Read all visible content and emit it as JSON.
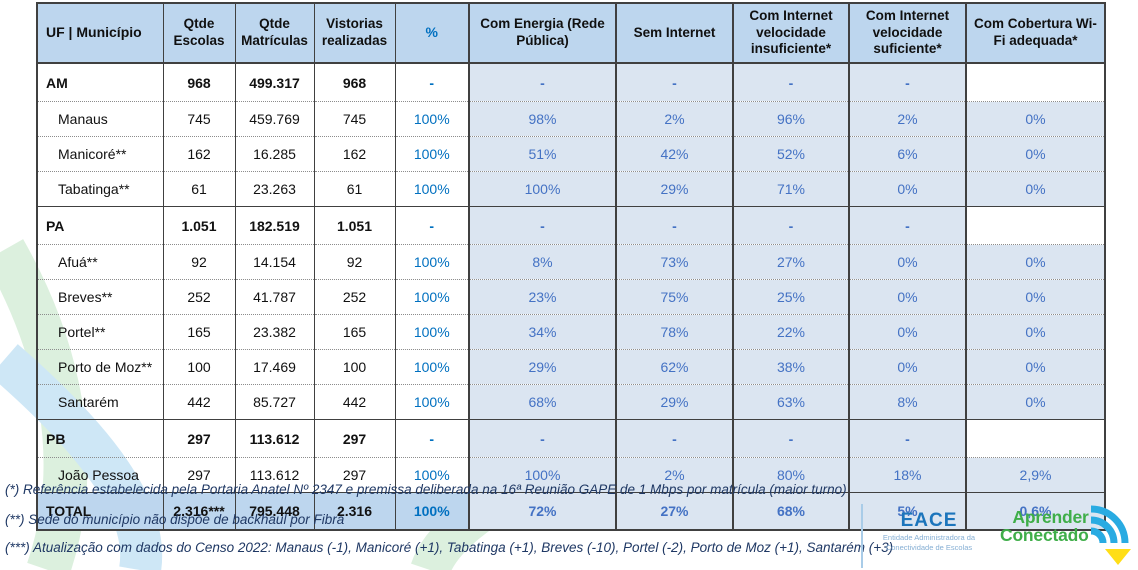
{
  "table": {
    "headers": [
      "UF | Município",
      "Qtde Escolas",
      "Qtde Matrículas",
      "Vistorias realizadas",
      "%",
      "Com Energia (Rede Pública)",
      "Sem Internet",
      "Com Internet velocidade insuficiente*",
      "Com Internet velocidade suficiente*",
      "Com Cobertura Wi-Fi adequada*"
    ],
    "rows": [
      {
        "type": "state",
        "cells": [
          "AM",
          "968",
          "499.317",
          "968",
          "-",
          "-",
          "-",
          "-",
          "-",
          ""
        ]
      },
      {
        "type": "muni",
        "cells": [
          "Manaus",
          "745",
          "459.769",
          "745",
          "100%",
          "98%",
          "2%",
          "96%",
          "2%",
          "0%"
        ]
      },
      {
        "type": "muni",
        "cells": [
          "Manicoré**",
          "162",
          "16.285",
          "162",
          "100%",
          "51%",
          "42%",
          "52%",
          "6%",
          "0%"
        ]
      },
      {
        "type": "muni",
        "cells": [
          "Tabatinga**",
          "61",
          "23.263",
          "61",
          "100%",
          "100%",
          "29%",
          "71%",
          "0%",
          "0%"
        ]
      },
      {
        "type": "state",
        "cells": [
          "PA",
          "1.051",
          "182.519",
          "1.051",
          "-",
          "-",
          "-",
          "-",
          "-",
          ""
        ]
      },
      {
        "type": "muni",
        "cells": [
          "Afuá**",
          "92",
          "14.154",
          "92",
          "100%",
          "8%",
          "73%",
          "27%",
          "0%",
          "0%"
        ]
      },
      {
        "type": "muni",
        "cells": [
          "Breves**",
          "252",
          "41.787",
          "252",
          "100%",
          "23%",
          "75%",
          "25%",
          "0%",
          "0%"
        ]
      },
      {
        "type": "muni",
        "cells": [
          "Portel**",
          "165",
          "23.382",
          "165",
          "100%",
          "34%",
          "78%",
          "22%",
          "0%",
          "0%"
        ]
      },
      {
        "type": "muni",
        "cells": [
          "Porto de Moz**",
          "100",
          "17.469",
          "100",
          "100%",
          "29%",
          "62%",
          "38%",
          "0%",
          "0%"
        ]
      },
      {
        "type": "muni",
        "cells": [
          "Santarém",
          "442",
          "85.727",
          "442",
          "100%",
          "68%",
          "29%",
          "63%",
          "8%",
          "0%"
        ]
      },
      {
        "type": "state",
        "cells": [
          "PB",
          "297",
          "113.612",
          "297",
          "-",
          "-",
          "-",
          "-",
          "-",
          ""
        ]
      },
      {
        "type": "muni",
        "cells": [
          "João Pessoa",
          "297",
          "113.612",
          "297",
          "100%",
          "100%",
          "2%",
          "80%",
          "18%",
          "2,9%"
        ]
      },
      {
        "type": "total",
        "cells": [
          "TOTAL",
          "2.316***",
          "795.448",
          "2.316",
          "100%",
          "72%",
          "27%",
          "68%",
          "5%",
          "0,6%"
        ]
      }
    ]
  },
  "footnotes": [
    "(*) Referência estabelecida pela Portaria Anatel Nº 2347 e premissa deliberada na 16ª Reunião GAPE de 1 Mbps por matrícula (maior turno)",
    "(**) Sede do município não dispõe de backhaul por Fibra",
    "(***) Atualização com dados do Censo 2022: Manaus (-1), Manicoré (+1), Tabatinga (+1), Breves (-10), Portel (-2), Porto de Moz (+1), Santarém (+3)"
  ],
  "logos": {
    "eace": {
      "word": "EACE",
      "tagline_line1": "Entidade Administradora da",
      "tagline_line2": "Conectividade de Escolas"
    },
    "aprender": {
      "line1": "Aprender",
      "line2": "Conectado"
    }
  },
  "colors": {
    "header_bg": "#BDD6EE",
    "data_cell_bg": "#DBE5F1",
    "pct_blue": "#0070C0",
    "data_blue": "#4472C4",
    "arc_green": "#DCF0DE",
    "arc_blue": "#CEE7F6",
    "eace_blue": "#1C75BC",
    "logo_green": "#3FAE49",
    "wifi_blue": "#29ABE2",
    "arrow_yellow": "#FFDE17"
  }
}
